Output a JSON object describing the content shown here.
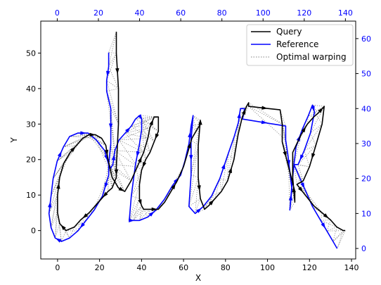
{
  "chart_data": {
    "type": "line",
    "xlabel": "X",
    "ylabel": "Y",
    "xlim": [
      -8,
      142
    ],
    "ylim": [
      -8,
      59
    ],
    "x_ticks": [
      0,
      20,
      40,
      60,
      80,
      100,
      120,
      140
    ],
    "y_ticks": [
      0,
      10,
      20,
      30,
      40,
      50
    ],
    "reference_axes": {
      "top_ticks": [
        0,
        20,
        40,
        60,
        80,
        100,
        120,
        140
      ],
      "right_ticks": [
        0,
        10,
        20,
        30,
        40,
        50,
        60
      ],
      "top_lim": [
        -8,
        145
      ],
      "right_lim": [
        -3,
        65
      ],
      "color": "#0000ff"
    },
    "legend": {
      "position": "top-right",
      "entries": [
        "Query",
        "Reference",
        "Optimal warping"
      ]
    },
    "series": [
      {
        "name": "Query",
        "color": "#000000",
        "axes": "bottom-left",
        "points": [
          [
            28,
            56
          ],
          [
            28,
            50
          ],
          [
            29,
            40
          ],
          [
            29,
            30
          ],
          [
            28,
            18
          ],
          [
            28,
            15
          ],
          [
            26,
            12
          ],
          [
            24,
            11
          ],
          [
            21,
            9
          ],
          [
            18,
            7
          ],
          [
            15,
            5
          ],
          [
            11,
            3
          ],
          [
            8,
            1
          ],
          [
            4,
            0
          ],
          [
            1,
            2
          ],
          [
            0,
            5
          ],
          [
            0,
            10
          ],
          [
            1,
            15
          ],
          [
            3,
            19
          ],
          [
            6,
            22
          ],
          [
            9,
            24
          ],
          [
            12,
            26
          ],
          [
            15,
            27
          ],
          [
            18,
            27
          ],
          [
            21,
            26
          ],
          [
            23,
            24
          ],
          [
            24,
            20
          ],
          [
            26,
            15
          ],
          [
            29,
            12
          ],
          [
            32,
            11
          ],
          [
            35,
            14
          ],
          [
            38,
            18
          ],
          [
            41,
            22
          ],
          [
            43,
            26
          ],
          [
            44,
            29
          ],
          [
            46,
            32
          ],
          [
            48,
            32
          ],
          [
            48,
            28
          ],
          [
            46,
            25
          ],
          [
            44,
            22
          ],
          [
            42,
            20
          ],
          [
            40,
            17
          ],
          [
            39,
            13
          ],
          [
            39,
            9
          ],
          [
            40,
            7
          ],
          [
            41,
            6
          ],
          [
            44,
            6
          ],
          [
            48,
            6
          ],
          [
            51,
            8
          ],
          [
            54,
            11
          ],
          [
            57,
            14
          ],
          [
            60,
            18
          ],
          [
            62,
            22
          ],
          [
            64,
            26
          ],
          [
            66,
            28
          ],
          [
            68,
            30
          ],
          [
            68,
            31
          ],
          [
            67,
            24
          ],
          [
            67,
            15
          ],
          [
            68,
            9
          ],
          [
            70,
            6
          ],
          [
            72,
            7
          ],
          [
            75,
            9
          ],
          [
            78,
            11
          ],
          [
            81,
            14
          ],
          [
            84,
            20
          ],
          [
            86,
            27
          ],
          [
            88,
            32
          ],
          [
            90,
            35
          ],
          [
            91,
            36
          ],
          [
            91,
            35
          ],
          [
            106,
            34
          ],
          [
            107,
            30
          ],
          [
            107,
            25
          ],
          [
            110,
            18
          ],
          [
            113,
            11
          ],
          [
            113,
            8
          ],
          [
            112,
            15
          ],
          [
            112,
            22
          ],
          [
            116,
            27
          ],
          [
            119,
            30
          ],
          [
            122,
            32
          ],
          [
            124,
            33
          ],
          [
            127,
            35
          ],
          [
            126,
            30
          ],
          [
            123,
            24
          ],
          [
            120,
            18
          ],
          [
            117,
            14
          ],
          [
            114,
            13
          ],
          [
            118,
            10
          ],
          [
            122,
            7
          ],
          [
            126,
            5
          ],
          [
            130,
            3
          ],
          [
            133,
            1
          ],
          [
            136,
            0
          ],
          [
            137,
            0
          ]
        ]
      },
      {
        "name": "Reference",
        "color": "#0000ff",
        "axes": "top-right",
        "points": [
          [
            25,
            56
          ],
          [
            25,
            52
          ],
          [
            24,
            48
          ],
          [
            24,
            45
          ],
          [
            26,
            40
          ],
          [
            26,
            30
          ],
          [
            25,
            24
          ],
          [
            25,
            21
          ],
          [
            22,
            15
          ],
          [
            18,
            11
          ],
          [
            14,
            8
          ],
          [
            10,
            5
          ],
          [
            6,
            3
          ],
          [
            2,
            2
          ],
          [
            -1,
            3
          ],
          [
            -3,
            6
          ],
          [
            -4,
            10
          ],
          [
            -3,
            15
          ],
          [
            -2,
            20
          ],
          [
            0,
            25
          ],
          [
            3,
            29
          ],
          [
            6,
            32
          ],
          [
            10,
            33
          ],
          [
            15,
            33
          ],
          [
            19,
            31
          ],
          [
            23,
            28
          ],
          [
            25,
            24
          ],
          [
            26,
            23
          ],
          [
            27,
            24
          ],
          [
            28,
            28
          ],
          [
            30,
            31
          ],
          [
            33,
            33
          ],
          [
            36,
            35
          ],
          [
            38,
            37
          ],
          [
            40,
            38
          ],
          [
            41,
            37
          ],
          [
            41,
            34
          ],
          [
            40,
            30
          ],
          [
            38,
            24
          ],
          [
            36,
            15
          ],
          [
            35,
            8
          ],
          [
            37,
            8
          ],
          [
            40,
            8
          ],
          [
            44,
            9
          ],
          [
            48,
            11
          ],
          [
            52,
            14
          ],
          [
            56,
            18
          ],
          [
            60,
            21
          ],
          [
            62,
            25
          ],
          [
            64,
            30
          ],
          [
            65,
            35
          ],
          [
            66,
            38
          ],
          [
            65,
            31
          ],
          [
            65,
            21
          ],
          [
            64,
            12
          ],
          [
            67,
            10
          ],
          [
            71,
            12
          ],
          [
            75,
            15
          ],
          [
            79,
            20
          ],
          [
            83,
            27
          ],
          [
            86,
            32
          ],
          [
            88,
            36
          ],
          [
            89,
            40
          ],
          [
            91,
            40
          ],
          [
            90,
            37
          ],
          [
            111,
            35
          ],
          [
            111,
            31
          ],
          [
            112,
            27
          ],
          [
            113,
            22
          ],
          [
            114,
            17
          ],
          [
            113,
            11
          ],
          [
            114,
            18
          ],
          [
            115,
            24
          ],
          [
            116,
            29
          ],
          [
            119,
            34
          ],
          [
            122,
            38
          ],
          [
            124,
            41
          ],
          [
            125,
            39
          ],
          [
            123,
            33
          ],
          [
            120,
            28
          ],
          [
            117,
            24
          ],
          [
            115,
            24
          ],
          [
            118,
            20
          ],
          [
            121,
            16
          ],
          [
            124,
            12
          ],
          [
            128,
            8
          ],
          [
            131,
            5
          ],
          [
            134,
            2
          ],
          [
            136,
            0
          ]
        ]
      }
    ],
    "warping_style": {
      "name": "Optimal warping",
      "color": "#808080",
      "dash": "dotted"
    }
  }
}
